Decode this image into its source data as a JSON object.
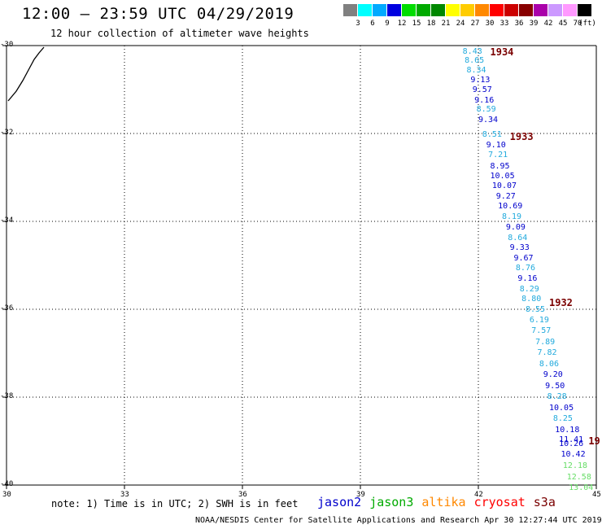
{
  "header": {
    "title": "12:00 – 23:59 UTC 04/29/2019",
    "subtitle": "12 hour collection of altimeter wave heights"
  },
  "scale": {
    "unit_label": "(ft)",
    "colors": [
      "#808080",
      "#00ffff",
      "#00aaff",
      "#0000e0",
      "#00dd00",
      "#00aa00",
      "#008800",
      "#ffff00",
      "#ffcc00",
      "#ff8800",
      "#ff0000",
      "#cc0000",
      "#880000",
      "#aa00aa",
      "#cc99ff",
      "#ff99ff",
      "#000000"
    ],
    "labels": [
      "3",
      "6",
      "9",
      "12",
      "15",
      "18",
      "21",
      "24",
      "27",
      "30",
      "33",
      "36",
      "39",
      "42",
      "45",
      "70"
    ]
  },
  "axes": {
    "x_range": [
      30,
      45
    ],
    "y_range": [
      -40,
      -30
    ],
    "x_ticks": [
      "30",
      "33",
      "36",
      "39",
      "42",
      "45"
    ],
    "y_ticks": [
      "-30",
      "-32",
      "-34",
      "-36",
      "-38",
      "-40"
    ]
  },
  "colors": {
    "jason2": "#0000cc",
    "jason3": "#00aa00",
    "altika": "#ff8800",
    "cryosat": "#ff0000",
    "s3a": "#7a0000",
    "cyan": "#22aadd",
    "lightgreen": "#66dd66"
  },
  "passes": [
    {
      "label": "1934",
      "lon": 42.3,
      "lat": -30.15
    },
    {
      "label": "1933",
      "lon": 42.8,
      "lat": -32.07
    },
    {
      "label": "1932",
      "lon": 43.8,
      "lat": -35.85
    },
    {
      "label": "19",
      "lon": 44.8,
      "lat": -39.0
    }
  ],
  "observations": [
    {
      "v": "8.43",
      "lon": 41.6,
      "lat": -30.15,
      "c": "cyan"
    },
    {
      "v": "8.65",
      "lon": 41.65,
      "lat": -30.35,
      "c": "cyan"
    },
    {
      "v": "8.34",
      "lon": 41.7,
      "lat": -30.58,
      "c": "cyan"
    },
    {
      "v": "9.13",
      "lon": 41.8,
      "lat": -30.8,
      "c": "jason2"
    },
    {
      "v": "9.57",
      "lon": 41.85,
      "lat": -31.02,
      "c": "jason2"
    },
    {
      "v": "9.16",
      "lon": 41.9,
      "lat": -31.25,
      "c": "jason2"
    },
    {
      "v": "8.59",
      "lon": 41.95,
      "lat": -31.47,
      "c": "cyan"
    },
    {
      "v": "9.34",
      "lon": 42.0,
      "lat": -31.7,
      "c": "jason2"
    },
    {
      "v": "8.51",
      "lon": 42.1,
      "lat": -32.03,
      "c": "cyan"
    },
    {
      "v": "9.10",
      "lon": 42.2,
      "lat": -32.27,
      "c": "jason2"
    },
    {
      "v": "7.21",
      "lon": 42.25,
      "lat": -32.5,
      "c": "cyan"
    },
    {
      "v": "8.95",
      "lon": 42.3,
      "lat": -32.75,
      "c": "jason2"
    },
    {
      "v": "10.05",
      "lon": 42.3,
      "lat": -32.98,
      "c": "jason2"
    },
    {
      "v": "10.07",
      "lon": 42.35,
      "lat": -33.2,
      "c": "jason2"
    },
    {
      "v": "9.27",
      "lon": 42.45,
      "lat": -33.45,
      "c": "jason2"
    },
    {
      "v": "10.69",
      "lon": 42.5,
      "lat": -33.67,
      "c": "jason2"
    },
    {
      "v": "8.19",
      "lon": 42.6,
      "lat": -33.91,
      "c": "cyan"
    },
    {
      "v": "9.09",
      "lon": 42.7,
      "lat": -34.15,
      "c": "jason2"
    },
    {
      "v": "8.64",
      "lon": 42.75,
      "lat": -34.38,
      "c": "cyan"
    },
    {
      "v": "9.33",
      "lon": 42.8,
      "lat": -34.62,
      "c": "jason2"
    },
    {
      "v": "9.67",
      "lon": 42.9,
      "lat": -34.85,
      "c": "jason2"
    },
    {
      "v": "8.76",
      "lon": 42.95,
      "lat": -35.08,
      "c": "cyan"
    },
    {
      "v": "9.16",
      "lon": 43.0,
      "lat": -35.32,
      "c": "jason2"
    },
    {
      "v": "8.29",
      "lon": 43.05,
      "lat": -35.55,
      "c": "cyan"
    },
    {
      "v": "8.80",
      "lon": 43.1,
      "lat": -35.78,
      "c": "cyan"
    },
    {
      "v": "8.55",
      "lon": 43.2,
      "lat": -36.02,
      "c": "cyan"
    },
    {
      "v": "6.19",
      "lon": 43.3,
      "lat": -36.25,
      "c": "cyan"
    },
    {
      "v": "7.57",
      "lon": 43.35,
      "lat": -36.5,
      "c": "cyan"
    },
    {
      "v": "7.89",
      "lon": 43.45,
      "lat": -36.75,
      "c": "cyan"
    },
    {
      "v": "7.82",
      "lon": 43.5,
      "lat": -37.0,
      "c": "cyan"
    },
    {
      "v": "8.06",
      "lon": 43.55,
      "lat": -37.25,
      "c": "cyan"
    },
    {
      "v": "9.20",
      "lon": 43.65,
      "lat": -37.5,
      "c": "jason2"
    },
    {
      "v": "9.50",
      "lon": 43.7,
      "lat": -37.75,
      "c": "jason2"
    },
    {
      "v": "8.28",
      "lon": 43.75,
      "lat": -38.0,
      "c": "cyan"
    },
    {
      "v": "10.05",
      "lon": 43.8,
      "lat": -38.25,
      "c": "jason2"
    },
    {
      "v": "8.25",
      "lon": 43.9,
      "lat": -38.5,
      "c": "cyan"
    },
    {
      "v": "10.18",
      "lon": 43.95,
      "lat": -38.75,
      "c": "jason2"
    },
    {
      "v": "11.41",
      "lon": 44.05,
      "lat": -38.98,
      "c": "jason2"
    },
    {
      "v": "10.26",
      "lon": 44.05,
      "lat": -39.08,
      "c": "jason2"
    },
    {
      "v": "10.42",
      "lon": 44.1,
      "lat": -39.32,
      "c": "jason2"
    },
    {
      "v": "12.18",
      "lon": 44.15,
      "lat": -39.58,
      "c": "lightgreen"
    },
    {
      "v": "12.58",
      "lon": 44.25,
      "lat": -39.83,
      "c": "lightgreen"
    },
    {
      "v": "13.04",
      "lon": 44.3,
      "lat": -40.08,
      "c": "lightgreen"
    }
  ],
  "note": "note: 1) Time is in UTC; 2) SWH is in feet",
  "legend": [
    {
      "label": "jason2",
      "c": "jason2"
    },
    {
      "label": "jason3",
      "c": "jason3"
    },
    {
      "label": "altika",
      "c": "altika"
    },
    {
      "label": "cryosat",
      "c": "cryosat"
    },
    {
      "label": "s3a",
      "c": "s3a"
    }
  ],
  "footer": "NOAA/NESDIS Center for Satellite Applications and Research    Apr 30 12:27:44 UTC 2019"
}
